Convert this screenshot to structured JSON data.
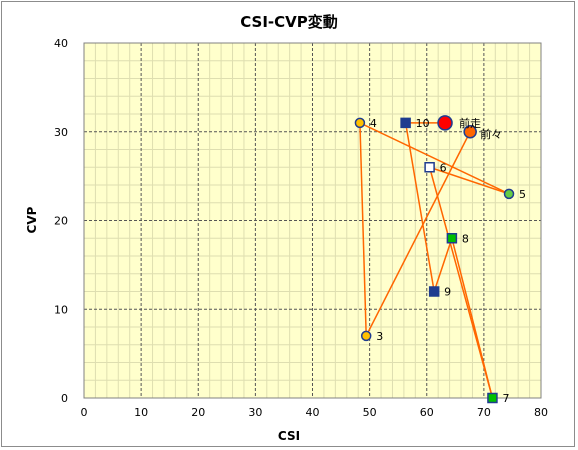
{
  "chart_data": {
    "type": "scatter",
    "title": "CSI-CVP変動",
    "xlabel": "CSI",
    "ylabel": "CVP",
    "xlim": [
      0,
      80
    ],
    "ylim": [
      0,
      40
    ],
    "xticks": [
      0,
      10,
      20,
      30,
      40,
      50,
      60,
      70,
      80
    ],
    "yticks": [
      0,
      10,
      20,
      30,
      40
    ],
    "grid": true,
    "colors": {
      "plot_bg": "#ffffcc",
      "line": "#ff6600",
      "square_dark": "#1f3c8f",
      "square_green": "#00c000",
      "circle_yellow": "#ffc000",
      "circle_green": "#66cc44",
      "circle_orange": "#ff6600",
      "circle_red": "#ff0000",
      "point_border": "#1f3c8f"
    },
    "path_order": [
      "前々",
      "3",
      "4",
      "5",
      "6",
      "7",
      "8",
      "9",
      "10",
      "前走"
    ],
    "points": [
      {
        "label": "前走",
        "x": 63.2,
        "y": 31.0,
        "marker": "circle",
        "fill": "#ff0000",
        "size": "large"
      },
      {
        "label": "前々",
        "x": 67.6,
        "y": 30.0,
        "marker": "circle",
        "fill": "#ff6600",
        "size": "medium"
      },
      {
        "label": "3",
        "x": 49.4,
        "y": 7.0,
        "marker": "circle",
        "fill": "#ffc000",
        "size": "small"
      },
      {
        "label": "4",
        "x": 48.3,
        "y": 31.0,
        "marker": "circle",
        "fill": "#ffc000",
        "size": "small"
      },
      {
        "label": "5",
        "x": 74.4,
        "y": 23.0,
        "marker": "circle",
        "fill": "#66cc44",
        "size": "small"
      },
      {
        "label": "6",
        "x": 60.5,
        "y": 26.0,
        "marker": "square",
        "fill": "#ffffff",
        "size": "small"
      },
      {
        "label": "7",
        "x": 71.5,
        "y": 0.0,
        "marker": "square",
        "fill": "#00c000",
        "size": "small"
      },
      {
        "label": "8",
        "x": 64.4,
        "y": 18.0,
        "marker": "square",
        "fill": "#00c000",
        "size": "small"
      },
      {
        "label": "9",
        "x": 61.3,
        "y": 12.0,
        "marker": "square",
        "fill": "#1f3c8f",
        "size": "small"
      },
      {
        "label": "10",
        "x": 56.3,
        "y": 31.0,
        "marker": "square",
        "fill": "#1f3c8f",
        "size": "small"
      }
    ]
  }
}
